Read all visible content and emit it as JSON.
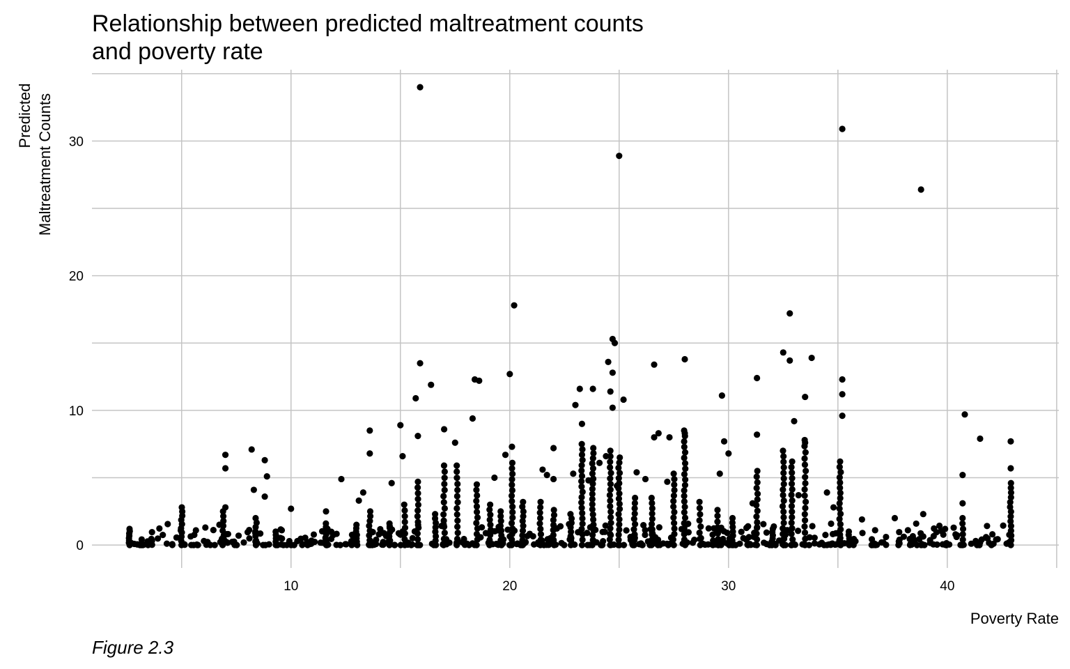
{
  "chart_data": {
    "type": "scatter",
    "title": "Relationship between predicted maltreatment counts\nand poverty rate",
    "xlabel": "Poverty Rate",
    "ylabel_line1": "Predicted",
    "ylabel_line2": "Maltreatment Counts",
    "caption": "Figure 2.3",
    "xlim": [
      0.9,
      45.1
    ],
    "ylim": [
      -1.7,
      35.3
    ],
    "xticks": [
      10,
      20,
      30,
      40
    ],
    "yticks": [
      0,
      10,
      20,
      30
    ],
    "grid": true,
    "point_color": "#000000",
    "points": [
      [
        15.9,
        34.0
      ],
      [
        35.2,
        30.9
      ],
      [
        25.0,
        28.9
      ],
      [
        38.8,
        26.4
      ],
      [
        20.2,
        17.8
      ],
      [
        32.8,
        17.2
      ],
      [
        24.7,
        15.3
      ],
      [
        24.8,
        15.0
      ],
      [
        32.5,
        14.3
      ],
      [
        32.8,
        13.7
      ],
      [
        33.8,
        13.9
      ],
      [
        28.0,
        13.8
      ],
      [
        24.5,
        13.6
      ],
      [
        15.9,
        13.5
      ],
      [
        26.6,
        13.4
      ],
      [
        24.7,
        12.8
      ],
      [
        20.0,
        12.7
      ],
      [
        31.3,
        12.4
      ],
      [
        35.2,
        12.3
      ],
      [
        18.4,
        12.3
      ],
      [
        18.6,
        12.2
      ],
      [
        16.4,
        11.9
      ],
      [
        23.8,
        11.6
      ],
      [
        23.2,
        11.6
      ],
      [
        35.2,
        11.2
      ],
      [
        29.7,
        11.1
      ],
      [
        24.6,
        11.4
      ],
      [
        25.2,
        10.8
      ],
      [
        15.7,
        10.9
      ],
      [
        33.5,
        11.0
      ],
      [
        24.7,
        10.2
      ],
      [
        23.0,
        10.4
      ],
      [
        40.8,
        9.7
      ],
      [
        35.2,
        9.6
      ],
      [
        33.0,
        9.2
      ],
      [
        18.3,
        9.4
      ],
      [
        23.3,
        9.0
      ],
      [
        15.0,
        8.9
      ],
      [
        13.6,
        8.5
      ],
      [
        17.0,
        8.6
      ],
      [
        28.0,
        8.3
      ],
      [
        31.3,
        8.2
      ],
      [
        15.8,
        8.1
      ],
      [
        26.6,
        8.0
      ],
      [
        41.5,
        7.9
      ],
      [
        42.9,
        7.7
      ],
      [
        29.8,
        7.7
      ],
      [
        17.5,
        7.6
      ],
      [
        20.1,
        7.3
      ],
      [
        33.5,
        7.6
      ],
      [
        22.0,
        7.2
      ],
      [
        8.2,
        7.1
      ],
      [
        7.0,
        6.7
      ],
      [
        13.6,
        6.8
      ],
      [
        30.0,
        6.8
      ],
      [
        15.1,
        6.6
      ],
      [
        8.8,
        6.3
      ],
      [
        24.4,
        6.6
      ],
      [
        19.8,
        6.7
      ],
      [
        35.1,
        6.2
      ],
      [
        7.0,
        5.7
      ],
      [
        42.9,
        5.7
      ],
      [
        29.6,
        5.3
      ],
      [
        40.7,
        5.2
      ],
      [
        8.9,
        5.1
      ],
      [
        12.3,
        4.9
      ],
      [
        22.0,
        4.9
      ],
      [
        19.3,
        5.0
      ],
      [
        14.6,
        4.6
      ],
      [
        8.3,
        4.1
      ],
      [
        34.5,
        3.9
      ],
      [
        13.3,
        3.9
      ],
      [
        8.8,
        3.6
      ],
      [
        13.1,
        3.3
      ],
      [
        26.8,
        8.3
      ],
      [
        27.3,
        8.0
      ],
      [
        22.9,
        5.3
      ],
      [
        25.8,
        5.4
      ],
      [
        21.5,
        5.6
      ],
      [
        21.7,
        5.2
      ],
      [
        23.6,
        4.8
      ],
      [
        24.1,
        6.1
      ],
      [
        24.9,
        4.4
      ],
      [
        26.2,
        4.9
      ],
      [
        27.2,
        4.7
      ],
      [
        31.1,
        3.1
      ],
      [
        33.2,
        3.7
      ],
      [
        34.8,
        2.8
      ],
      [
        10.0,
        2.7
      ],
      [
        7.0,
        2.8
      ],
      [
        11.6,
        2.5
      ],
      [
        36.1,
        1.9
      ],
      [
        37.6,
        2.0
      ],
      [
        38.9,
        2.3
      ],
      [
        40.7,
        3.1
      ],
      [
        39.9,
        1.2
      ],
      [
        36.7,
        1.1
      ],
      [
        38.2,
        1.1
      ],
      [
        37.2,
        0.6
      ],
      [
        41.3,
        0.3
      ]
    ],
    "columns": [
      {
        "x": 2.6,
        "ymax": 1.2,
        "n": 8
      },
      {
        "x": 5.0,
        "ymax": 2.8,
        "n": 10
      },
      {
        "x": 6.9,
        "ymax": 2.5,
        "n": 8
      },
      {
        "x": 8.4,
        "ymax": 2.0,
        "n": 7
      },
      {
        "x": 9.3,
        "ymax": 1.0,
        "n": 5
      },
      {
        "x": 11.6,
        "ymax": 1.6,
        "n": 7
      },
      {
        "x": 13.0,
        "ymax": 1.5,
        "n": 7
      },
      {
        "x": 13.6,
        "ymax": 2.5,
        "n": 8
      },
      {
        "x": 14.5,
        "ymax": 1.6,
        "n": 6
      },
      {
        "x": 15.2,
        "ymax": 3.0,
        "n": 8
      },
      {
        "x": 15.8,
        "ymax": 4.7,
        "n": 12
      },
      {
        "x": 16.6,
        "ymax": 2.3,
        "n": 8
      },
      {
        "x": 17.0,
        "ymax": 5.9,
        "n": 14
      },
      {
        "x": 17.6,
        "ymax": 5.9,
        "n": 14
      },
      {
        "x": 18.5,
        "ymax": 4.5,
        "n": 12
      },
      {
        "x": 19.1,
        "ymax": 3.0,
        "n": 9
      },
      {
        "x": 19.6,
        "ymax": 2.5,
        "n": 8
      },
      {
        "x": 20.1,
        "ymax": 6.1,
        "n": 16
      },
      {
        "x": 20.6,
        "ymax": 3.2,
        "n": 10
      },
      {
        "x": 21.4,
        "ymax": 3.2,
        "n": 9
      },
      {
        "x": 22.0,
        "ymax": 2.6,
        "n": 8
      },
      {
        "x": 22.8,
        "ymax": 2.3,
        "n": 8
      },
      {
        "x": 23.3,
        "ymax": 7.5,
        "n": 20
      },
      {
        "x": 23.8,
        "ymax": 7.2,
        "n": 20
      },
      {
        "x": 24.6,
        "ymax": 7.0,
        "n": 18
      },
      {
        "x": 25.0,
        "ymax": 6.5,
        "n": 18
      },
      {
        "x": 25.7,
        "ymax": 3.5,
        "n": 10
      },
      {
        "x": 26.5,
        "ymax": 3.5,
        "n": 10
      },
      {
        "x": 27.5,
        "ymax": 5.3,
        "n": 14
      },
      {
        "x": 28.0,
        "ymax": 8.5,
        "n": 22
      },
      {
        "x": 28.7,
        "ymax": 3.2,
        "n": 8
      },
      {
        "x": 29.5,
        "ymax": 2.6,
        "n": 7
      },
      {
        "x": 30.2,
        "ymax": 2.0,
        "n": 7
      },
      {
        "x": 31.3,
        "ymax": 5.5,
        "n": 14
      },
      {
        "x": 32.0,
        "ymax": 1.2,
        "n": 6
      },
      {
        "x": 32.5,
        "ymax": 7.0,
        "n": 18
      },
      {
        "x": 32.9,
        "ymax": 6.2,
        "n": 16
      },
      {
        "x": 33.5,
        "ymax": 7.8,
        "n": 18
      },
      {
        "x": 35.1,
        "ymax": 5.8,
        "n": 16
      },
      {
        "x": 35.5,
        "ymax": 1.0,
        "n": 5
      },
      {
        "x": 37.8,
        "ymax": 0.4,
        "n": 4
      },
      {
        "x": 40.7,
        "ymax": 2.0,
        "n": 6
      },
      {
        "x": 42.9,
        "ymax": 4.6,
        "n": 14
      }
    ],
    "band_count": 460
  }
}
